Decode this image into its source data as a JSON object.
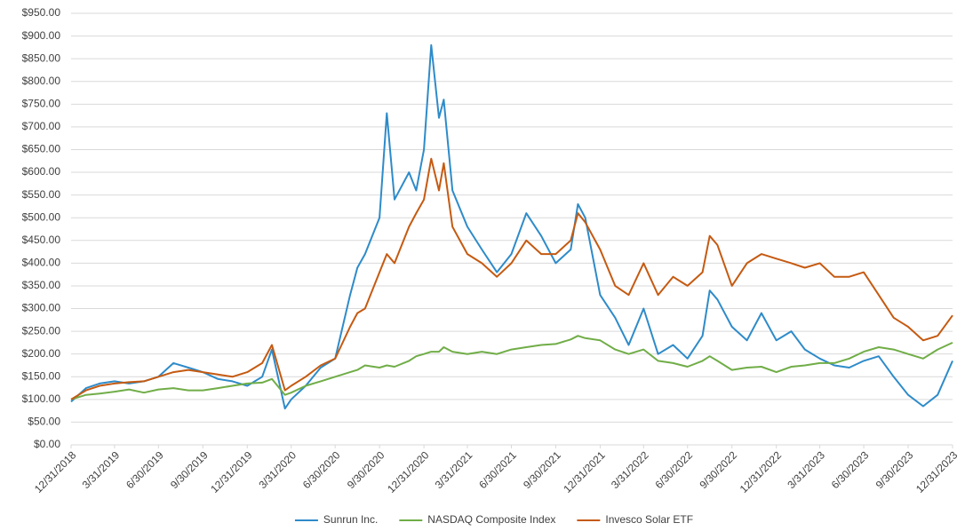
{
  "chart_data": {
    "type": "line",
    "x": [
      "2018-12-31",
      "2019-01-31",
      "2019-02-28",
      "2019-03-31",
      "2019-04-30",
      "2019-05-31",
      "2019-06-30",
      "2019-07-31",
      "2019-08-31",
      "2019-09-30",
      "2019-10-31",
      "2019-11-30",
      "2019-12-31",
      "2020-01-31",
      "2020-02-20",
      "2020-03-18",
      "2020-03-31",
      "2020-04-30",
      "2020-05-31",
      "2020-06-30",
      "2020-07-31",
      "2020-08-15",
      "2020-08-31",
      "2020-09-30",
      "2020-10-15",
      "2020-10-31",
      "2020-11-30",
      "2020-12-15",
      "2020-12-31",
      "2021-01-15",
      "2021-01-31",
      "2021-02-10",
      "2021-02-28",
      "2021-03-31",
      "2021-04-30",
      "2021-05-31",
      "2021-06-30",
      "2021-07-31",
      "2021-08-31",
      "2021-09-30",
      "2021-10-31",
      "2021-11-15",
      "2021-11-30",
      "2021-12-31",
      "2022-01-31",
      "2022-02-28",
      "2022-03-31",
      "2022-04-30",
      "2022-05-31",
      "2022-06-30",
      "2022-07-31",
      "2022-08-15",
      "2022-08-31",
      "2022-09-30",
      "2022-10-31",
      "2022-11-30",
      "2022-12-31",
      "2023-01-31",
      "2023-02-28",
      "2023-03-31",
      "2023-04-30",
      "2023-05-31",
      "2023-06-30",
      "2023-07-31",
      "2023-08-31",
      "2023-09-30",
      "2023-10-31",
      "2023-11-30",
      "2023-12-31"
    ],
    "series": [
      {
        "name": "Sunrun Inc.",
        "color": "#2e8bc9",
        "values": [
          95,
          125,
          135,
          140,
          135,
          140,
          150,
          180,
          170,
          160,
          145,
          140,
          130,
          150,
          210,
          80,
          100,
          130,
          170,
          190,
          330,
          390,
          420,
          500,
          730,
          540,
          600,
          560,
          650,
          880,
          720,
          760,
          560,
          480,
          430,
          380,
          420,
          510,
          460,
          400,
          430,
          530,
          500,
          330,
          280,
          220,
          300,
          200,
          220,
          190,
          240,
          340,
          320,
          260,
          230,
          290,
          230,
          250,
          210,
          190,
          175,
          170,
          185,
          195,
          150,
          110,
          85,
          110,
          185
        ]
      },
      {
        "name": "NASDAQ Composite Index",
        "color": "#70ad47",
        "values": [
          100,
          110,
          113,
          117,
          122,
          115,
          122,
          125,
          120,
          120,
          125,
          130,
          135,
          137,
          145,
          110,
          115,
          130,
          140,
          150,
          160,
          165,
          175,
          170,
          175,
          172,
          185,
          195,
          200,
          205,
          205,
          215,
          205,
          200,
          205,
          200,
          210,
          215,
          220,
          222,
          232,
          240,
          235,
          230,
          210,
          200,
          210,
          185,
          180,
          172,
          185,
          195,
          185,
          165,
          170,
          172,
          160,
          172,
          175,
          180,
          180,
          190,
          205,
          215,
          210,
          200,
          190,
          210,
          225
        ]
      },
      {
        "name": "Invesco Solar ETF",
        "color": "#c55a11",
        "values": [
          100,
          120,
          130,
          135,
          138,
          140,
          150,
          160,
          165,
          160,
          155,
          150,
          160,
          180,
          220,
          120,
          130,
          150,
          175,
          190,
          260,
          290,
          300,
          380,
          420,
          400,
          480,
          510,
          540,
          630,
          560,
          620,
          480,
          420,
          400,
          370,
          400,
          450,
          420,
          420,
          450,
          510,
          490,
          430,
          350,
          330,
          400,
          330,
          370,
          350,
          380,
          460,
          440,
          350,
          400,
          420,
          410,
          400,
          390,
          400,
          370,
          370,
          380,
          330,
          280,
          260,
          230,
          240,
          285
        ]
      }
    ],
    "xlim": [
      "2018-12-31",
      "2023-12-31"
    ],
    "xticks": [
      {
        "value": "2018-12-31",
        "label": "12/31/2018"
      },
      {
        "value": "2019-03-31",
        "label": "3/31/2019"
      },
      {
        "value": "2019-06-30",
        "label": "6/30/2019"
      },
      {
        "value": "2019-09-30",
        "label": "9/30/2019"
      },
      {
        "value": "2019-12-31",
        "label": "12/31/2019"
      },
      {
        "value": "2020-03-31",
        "label": "3/31/2020"
      },
      {
        "value": "2020-06-30",
        "label": "6/30/2020"
      },
      {
        "value": "2020-09-30",
        "label": "9/30/2020"
      },
      {
        "value": "2020-12-31",
        "label": "12/31/2020"
      },
      {
        "value": "2021-03-31",
        "label": "3/31/2021"
      },
      {
        "value": "2021-06-30",
        "label": "6/30/2021"
      },
      {
        "value": "2021-09-30",
        "label": "9/30/2021"
      },
      {
        "value": "2021-12-31",
        "label": "12/31/2021"
      },
      {
        "value": "2022-03-31",
        "label": "3/31/2022"
      },
      {
        "value": "2022-06-30",
        "label": "6/30/2022"
      },
      {
        "value": "2022-09-30",
        "label": "9/30/2022"
      },
      {
        "value": "2022-12-31",
        "label": "12/31/2022"
      },
      {
        "value": "2023-03-31",
        "label": "3/31/2023"
      },
      {
        "value": "2023-06-30",
        "label": "6/30/2023"
      },
      {
        "value": "2023-09-30",
        "label": "9/30/2023"
      },
      {
        "value": "2023-12-31",
        "label": "12/31/2023"
      }
    ],
    "ylim": [
      0,
      950
    ],
    "yticks": [
      {
        "value": 0,
        "label": "$0.00"
      },
      {
        "value": 50,
        "label": "$50.00"
      },
      {
        "value": 100,
        "label": "$100.00"
      },
      {
        "value": 150,
        "label": "$150.00"
      },
      {
        "value": 200,
        "label": "$200.00"
      },
      {
        "value": 250,
        "label": "$250.00"
      },
      {
        "value": 300,
        "label": "$300.00"
      },
      {
        "value": 350,
        "label": "$350.00"
      },
      {
        "value": 400,
        "label": "$400.00"
      },
      {
        "value": 450,
        "label": "$450.00"
      },
      {
        "value": 500,
        "label": "$500.00"
      },
      {
        "value": 550,
        "label": "$550.00"
      },
      {
        "value": 600,
        "label": "$600.00"
      },
      {
        "value": 650,
        "label": "$650.00"
      },
      {
        "value": 700,
        "label": "$700.00"
      },
      {
        "value": 750,
        "label": "$750.00"
      },
      {
        "value": 800,
        "label": "$800.00"
      },
      {
        "value": 850,
        "label": "$850.00"
      },
      {
        "value": 900,
        "label": "$900.00"
      },
      {
        "value": 950,
        "label": "$950.00"
      }
    ],
    "grid": true,
    "legend": "bottom"
  }
}
